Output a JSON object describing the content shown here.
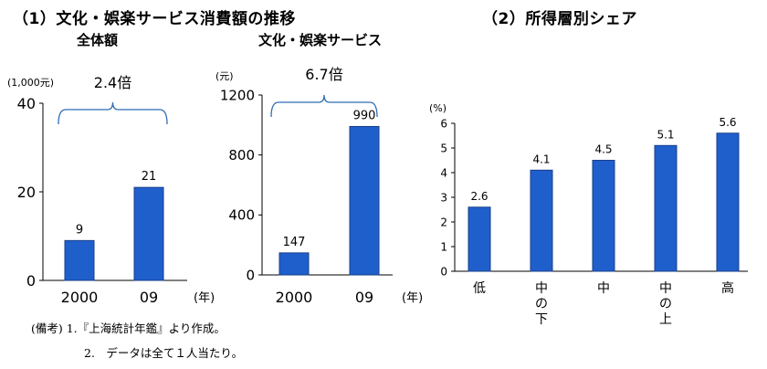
{
  "section1_title": "（1）文化・娯楽サービス消費額の推移",
  "section2_title": "（2）所得層別シェア",
  "notes": [
    "(備考) 1.『上海統計年鑑』より作成。",
    "2.　データは全て１人当たり。"
  ],
  "colors": {
    "bar": "#1f5fcc",
    "bar_stroke": "#1a3f8a",
    "brace": "#2f6cb5"
  },
  "chart_data": [
    {
      "type": "bar",
      "title": "全体額",
      "unit_label": "(1,000元)",
      "x_unit": "(年)",
      "categories": [
        "2000",
        "09"
      ],
      "values": [
        9,
        21
      ],
      "ylim": [
        0,
        40
      ],
      "yticks": [
        0,
        20,
        40
      ],
      "annotation": "2.4倍"
    },
    {
      "type": "bar",
      "title": "文化・娯楽サービス",
      "unit_label": "(元)",
      "x_unit": "(年)",
      "categories": [
        "2000",
        "09"
      ],
      "values": [
        147,
        990
      ],
      "ylim": [
        0,
        1200
      ],
      "yticks": [
        0,
        400,
        800,
        1200
      ],
      "annotation": "6.7倍"
    },
    {
      "type": "bar",
      "title": "",
      "unit_label": "(%)",
      "categories": [
        "低",
        "中の下",
        "中",
        "中の上",
        "高"
      ],
      "values": [
        2.6,
        4.1,
        4.5,
        5.1,
        5.6
      ],
      "ylim": [
        0,
        6
      ],
      "yticks": [
        0,
        1,
        2,
        3,
        4,
        5,
        6
      ]
    }
  ]
}
